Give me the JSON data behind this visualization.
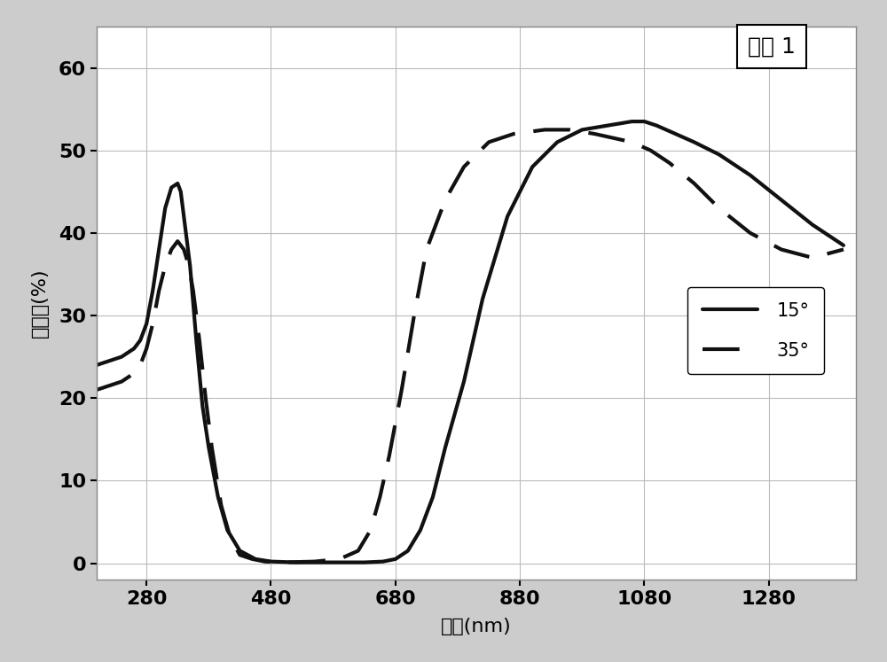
{
  "title_box": "实例 1",
  "xlabel": "波长(nm)",
  "ylabel": "反射率(%)",
  "xlim": [
    200,
    1420
  ],
  "ylim": [
    -2,
    65
  ],
  "xticks": [
    280,
    480,
    680,
    880,
    1080,
    1280
  ],
  "yticks": [
    0,
    10,
    20,
    30,
    40,
    50,
    60
  ],
  "grid_color": "#bbbbbb",
  "plot_bg_color": "#ffffff",
  "fig_bg_color": "#cccccc",
  "line_color": "#111111",
  "line15_label": "15°",
  "line35_label": "35°",
  "line15_x": [
    200,
    240,
    260,
    270,
    280,
    290,
    300,
    310,
    320,
    330,
    335,
    340,
    350,
    360,
    370,
    380,
    395,
    410,
    430,
    455,
    480,
    520,
    580,
    630,
    660,
    680,
    700,
    720,
    740,
    760,
    790,
    820,
    860,
    900,
    940,
    980,
    1020,
    1060,
    1080,
    1100,
    1130,
    1160,
    1200,
    1250,
    1300,
    1350,
    1400
  ],
  "line15_y": [
    24,
    25,
    26,
    27,
    29,
    33,
    38,
    43,
    45.5,
    46,
    45,
    42,
    36,
    27,
    19,
    14,
    8,
    4,
    1.5,
    0.5,
    0.2,
    0.1,
    0.1,
    0.1,
    0.2,
    0.5,
    1.5,
    4,
    8,
    14,
    22,
    32,
    42,
    48,
    51,
    52.5,
    53,
    53.5,
    53.5,
    53,
    52,
    51,
    49.5,
    47,
    44,
    41,
    38.5
  ],
  "line35_x": [
    200,
    240,
    260,
    270,
    280,
    290,
    300,
    310,
    320,
    330,
    340,
    348,
    355,
    365,
    375,
    385,
    400,
    415,
    430,
    450,
    470,
    500,
    550,
    590,
    620,
    640,
    655,
    670,
    690,
    710,
    730,
    760,
    790,
    830,
    870,
    920,
    960,
    1000,
    1030,
    1060,
    1090,
    1120,
    1160,
    1200,
    1250,
    1300,
    1350,
    1400
  ],
  "line35_y": [
    21,
    22,
    23,
    24,
    26,
    29,
    33,
    36,
    38,
    39,
    38,
    36,
    33,
    27,
    20,
    14,
    7,
    3,
    1,
    0.5,
    0.2,
    0.1,
    0.2,
    0.5,
    1.5,
    4,
    8,
    13,
    21,
    30,
    38,
    44,
    48,
    51,
    52,
    52.5,
    52.5,
    52,
    51.5,
    51,
    50,
    48.5,
    46,
    43,
    40,
    38,
    37,
    38
  ],
  "title_fontsize": 18,
  "axis_label_fontsize": 16,
  "tick_fontsize": 16,
  "legend_fontsize": 15,
  "linewidth": 3.0
}
